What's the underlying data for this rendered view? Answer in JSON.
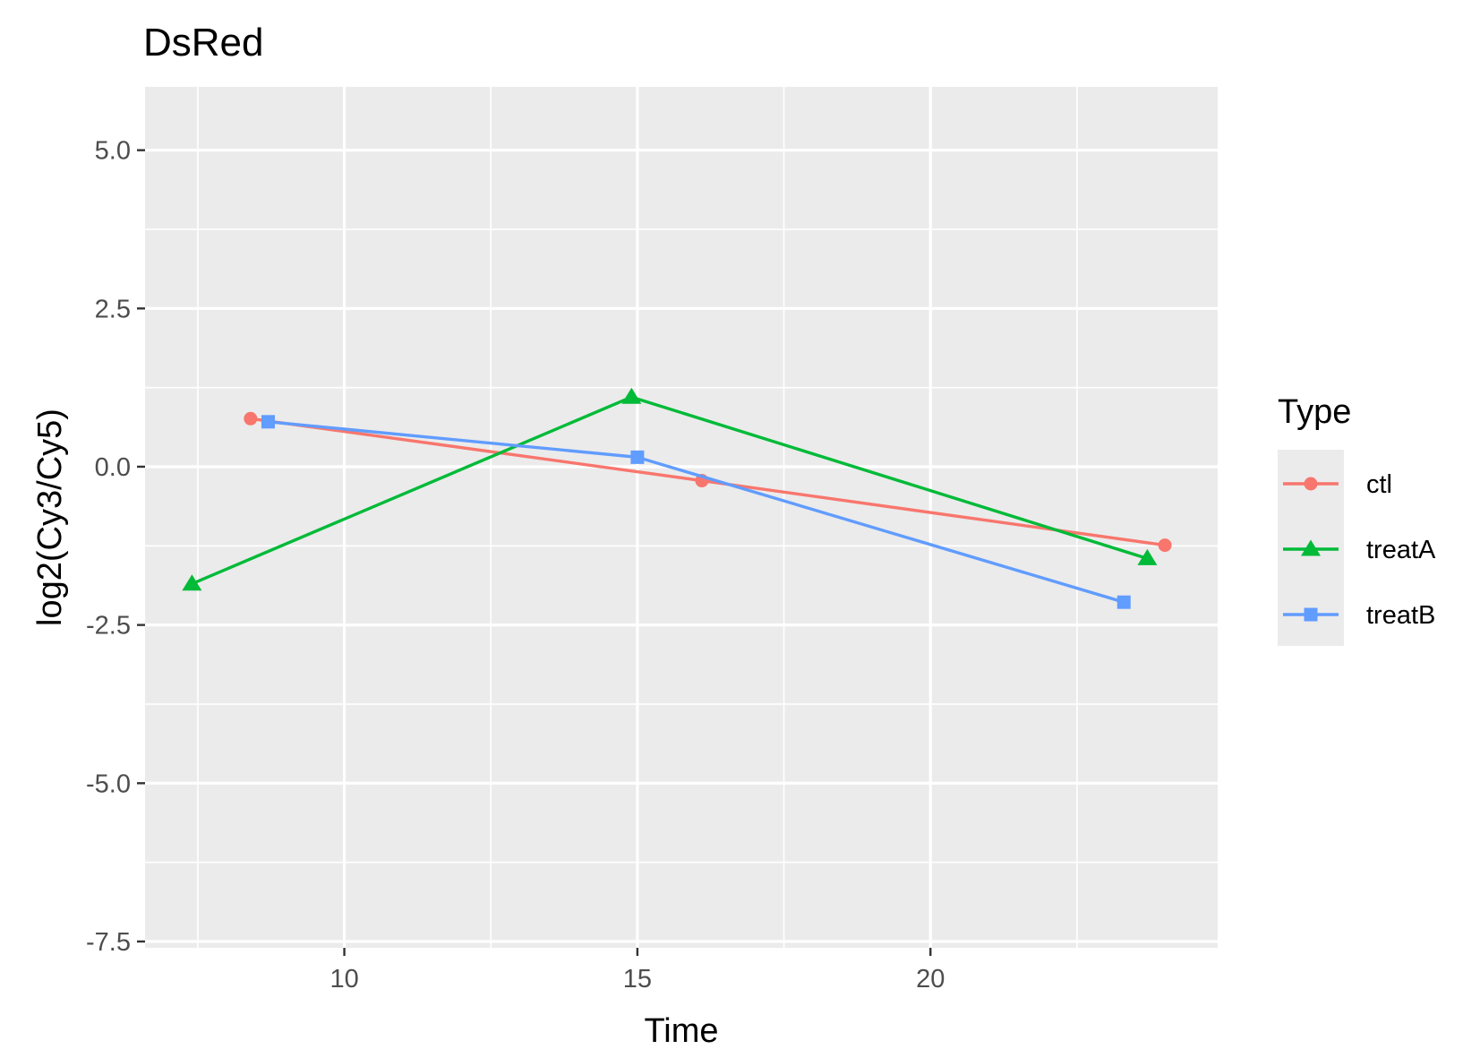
{
  "chart_data": {
    "type": "line",
    "title": "DsRed",
    "xlabel": "Time",
    "ylabel": "log2(Cy3/Cy5)",
    "xlim": [
      6.6,
      24.9
    ],
    "ylim": [
      -7.6,
      6.0
    ],
    "x_ticks": [
      10,
      15,
      20
    ],
    "x_tick_labels": [
      "10",
      "15",
      "20"
    ],
    "y_ticks": [
      -7.5,
      -5.0,
      -2.5,
      0.0,
      2.5,
      5.0
    ],
    "y_tick_labels": [
      "-7.5",
      "-5.0",
      "-2.5",
      "0.0",
      "2.5",
      "5.0"
    ],
    "grid": true,
    "legend": {
      "title": "Type",
      "position": "right"
    },
    "series": [
      {
        "name": "ctl",
        "color": "#F8766D",
        "marker": "circle",
        "x": [
          8.4,
          16.1,
          24.0
        ],
        "y": [
          0.76,
          -0.22,
          -1.24
        ]
      },
      {
        "name": "treatA",
        "color": "#00BA38",
        "marker": "triangle",
        "x": [
          7.4,
          14.9,
          23.7
        ],
        "y": [
          -1.85,
          1.1,
          -1.45
        ]
      },
      {
        "name": "treatB",
        "color": "#619CFF",
        "marker": "square",
        "x": [
          8.7,
          15.0,
          23.3
        ],
        "y": [
          0.71,
          0.15,
          -2.14
        ]
      }
    ]
  }
}
